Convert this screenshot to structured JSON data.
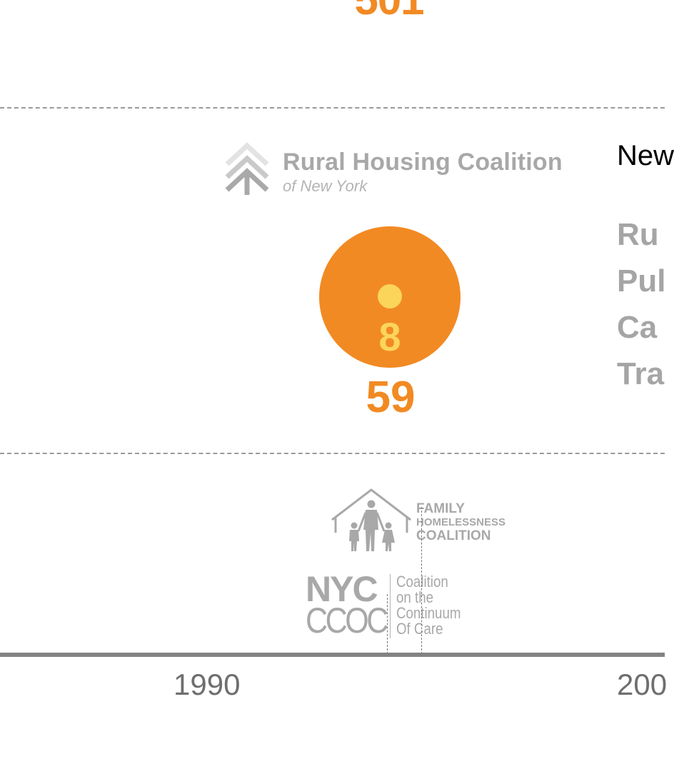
{
  "colors": {
    "accent_orange": "#f28a23",
    "accent_yellow": "#fbd55a",
    "logo_gray": "#a8a8a8",
    "axis_gray": "#838383",
    "axis_label_gray": "#6e6e6e"
  },
  "top_marker": {
    "count": "501"
  },
  "rural_housing_coalition": {
    "icon": "pine-tree-chevron-icon",
    "name": "Rural Housing Coalition",
    "subtitle": "of New York"
  },
  "details_panel": {
    "heading": "New",
    "items": [
      "Ru",
      "Pul",
      "Ca",
      "Tra"
    ]
  },
  "bubble": {
    "inner_value": "8",
    "count": "59"
  },
  "family_homelessness_coalition": {
    "icon": "family-house-icon",
    "lines": [
      "FAMILY",
      "HOMELESSNESS",
      "COALITION"
    ]
  },
  "nyc_ccoc": {
    "abbr_top": "NYC",
    "abbr_bottom": "CCOC",
    "description": [
      "Coalition",
      "on the",
      "Continuum",
      "Of Care"
    ]
  },
  "timeline": {
    "labels": [
      "1990",
      "200"
    ]
  }
}
